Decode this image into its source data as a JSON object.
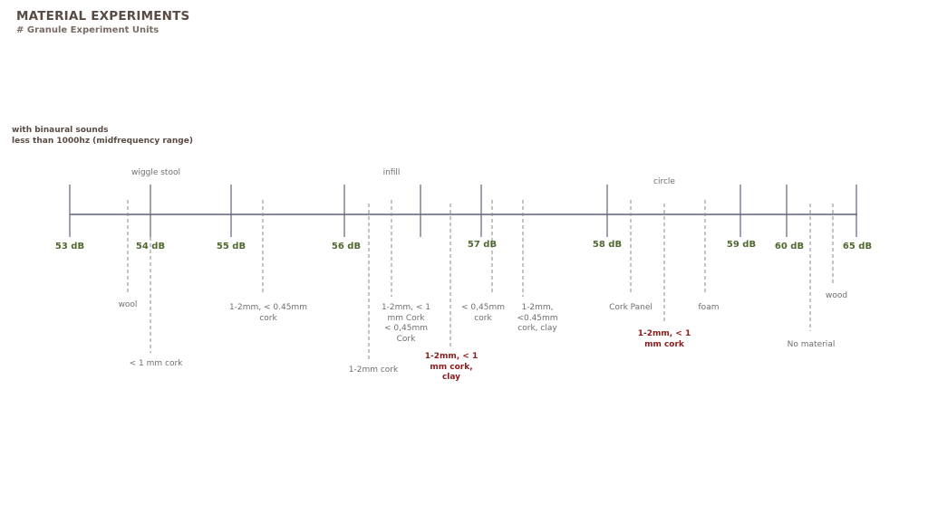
{
  "header": {
    "title": "MATERIAL EXPERIMENTS",
    "subtitle": "# Granule Experiment Units"
  },
  "note": {
    "line1": "with binaural sounds",
    "line2": "less than 1000hz (midfrequency range)"
  },
  "colors": {
    "axis": "#5c6478",
    "db_label": "#4f6a2f",
    "highlight": "#8b1a1a",
    "text": "#6e6e6e",
    "dashed": "#8a8a8a"
  },
  "db_ticks": [
    {
      "label": "53 dB",
      "value": 53
    },
    {
      "label": "54 dB",
      "value": 54
    },
    {
      "label": "55 dB",
      "value": 55
    },
    {
      "label": "56 dB",
      "value": 56
    },
    {
      "label": "57 dB",
      "value": 57
    },
    {
      "label": "58 dB",
      "value": 58
    },
    {
      "label": "59 dB",
      "value": 59
    },
    {
      "label": "60 dB",
      "value": 60
    },
    {
      "label": "65 dB",
      "value": 65
    }
  ],
  "group_labels": [
    {
      "text": "wiggle stool"
    },
    {
      "text": "infill"
    },
    {
      "text": "circle"
    }
  ],
  "materials": [
    {
      "text": "wool"
    },
    {
      "text": "< 1 mm cork"
    },
    {
      "text": "1-2mm, < 0.45mm\ncork"
    },
    {
      "text": "1-2mm cork"
    },
    {
      "text": "1-2mm, < 1\nmm Cork\n< 0,45mm\nCork"
    },
    {
      "text": "1-2mm, < 1\nmm cork,\nclay",
      "highlight": true
    },
    {
      "text": "< 0,45mm\ncork"
    },
    {
      "text": "1-2mm,\n<0.45mm\ncork, clay"
    },
    {
      "text": "Cork Panel"
    },
    {
      "text": "1-2mm, < 1\nmm cork",
      "highlight": true
    },
    {
      "text": "foam"
    },
    {
      "text": "No material"
    },
    {
      "text": "wood"
    }
  ]
}
